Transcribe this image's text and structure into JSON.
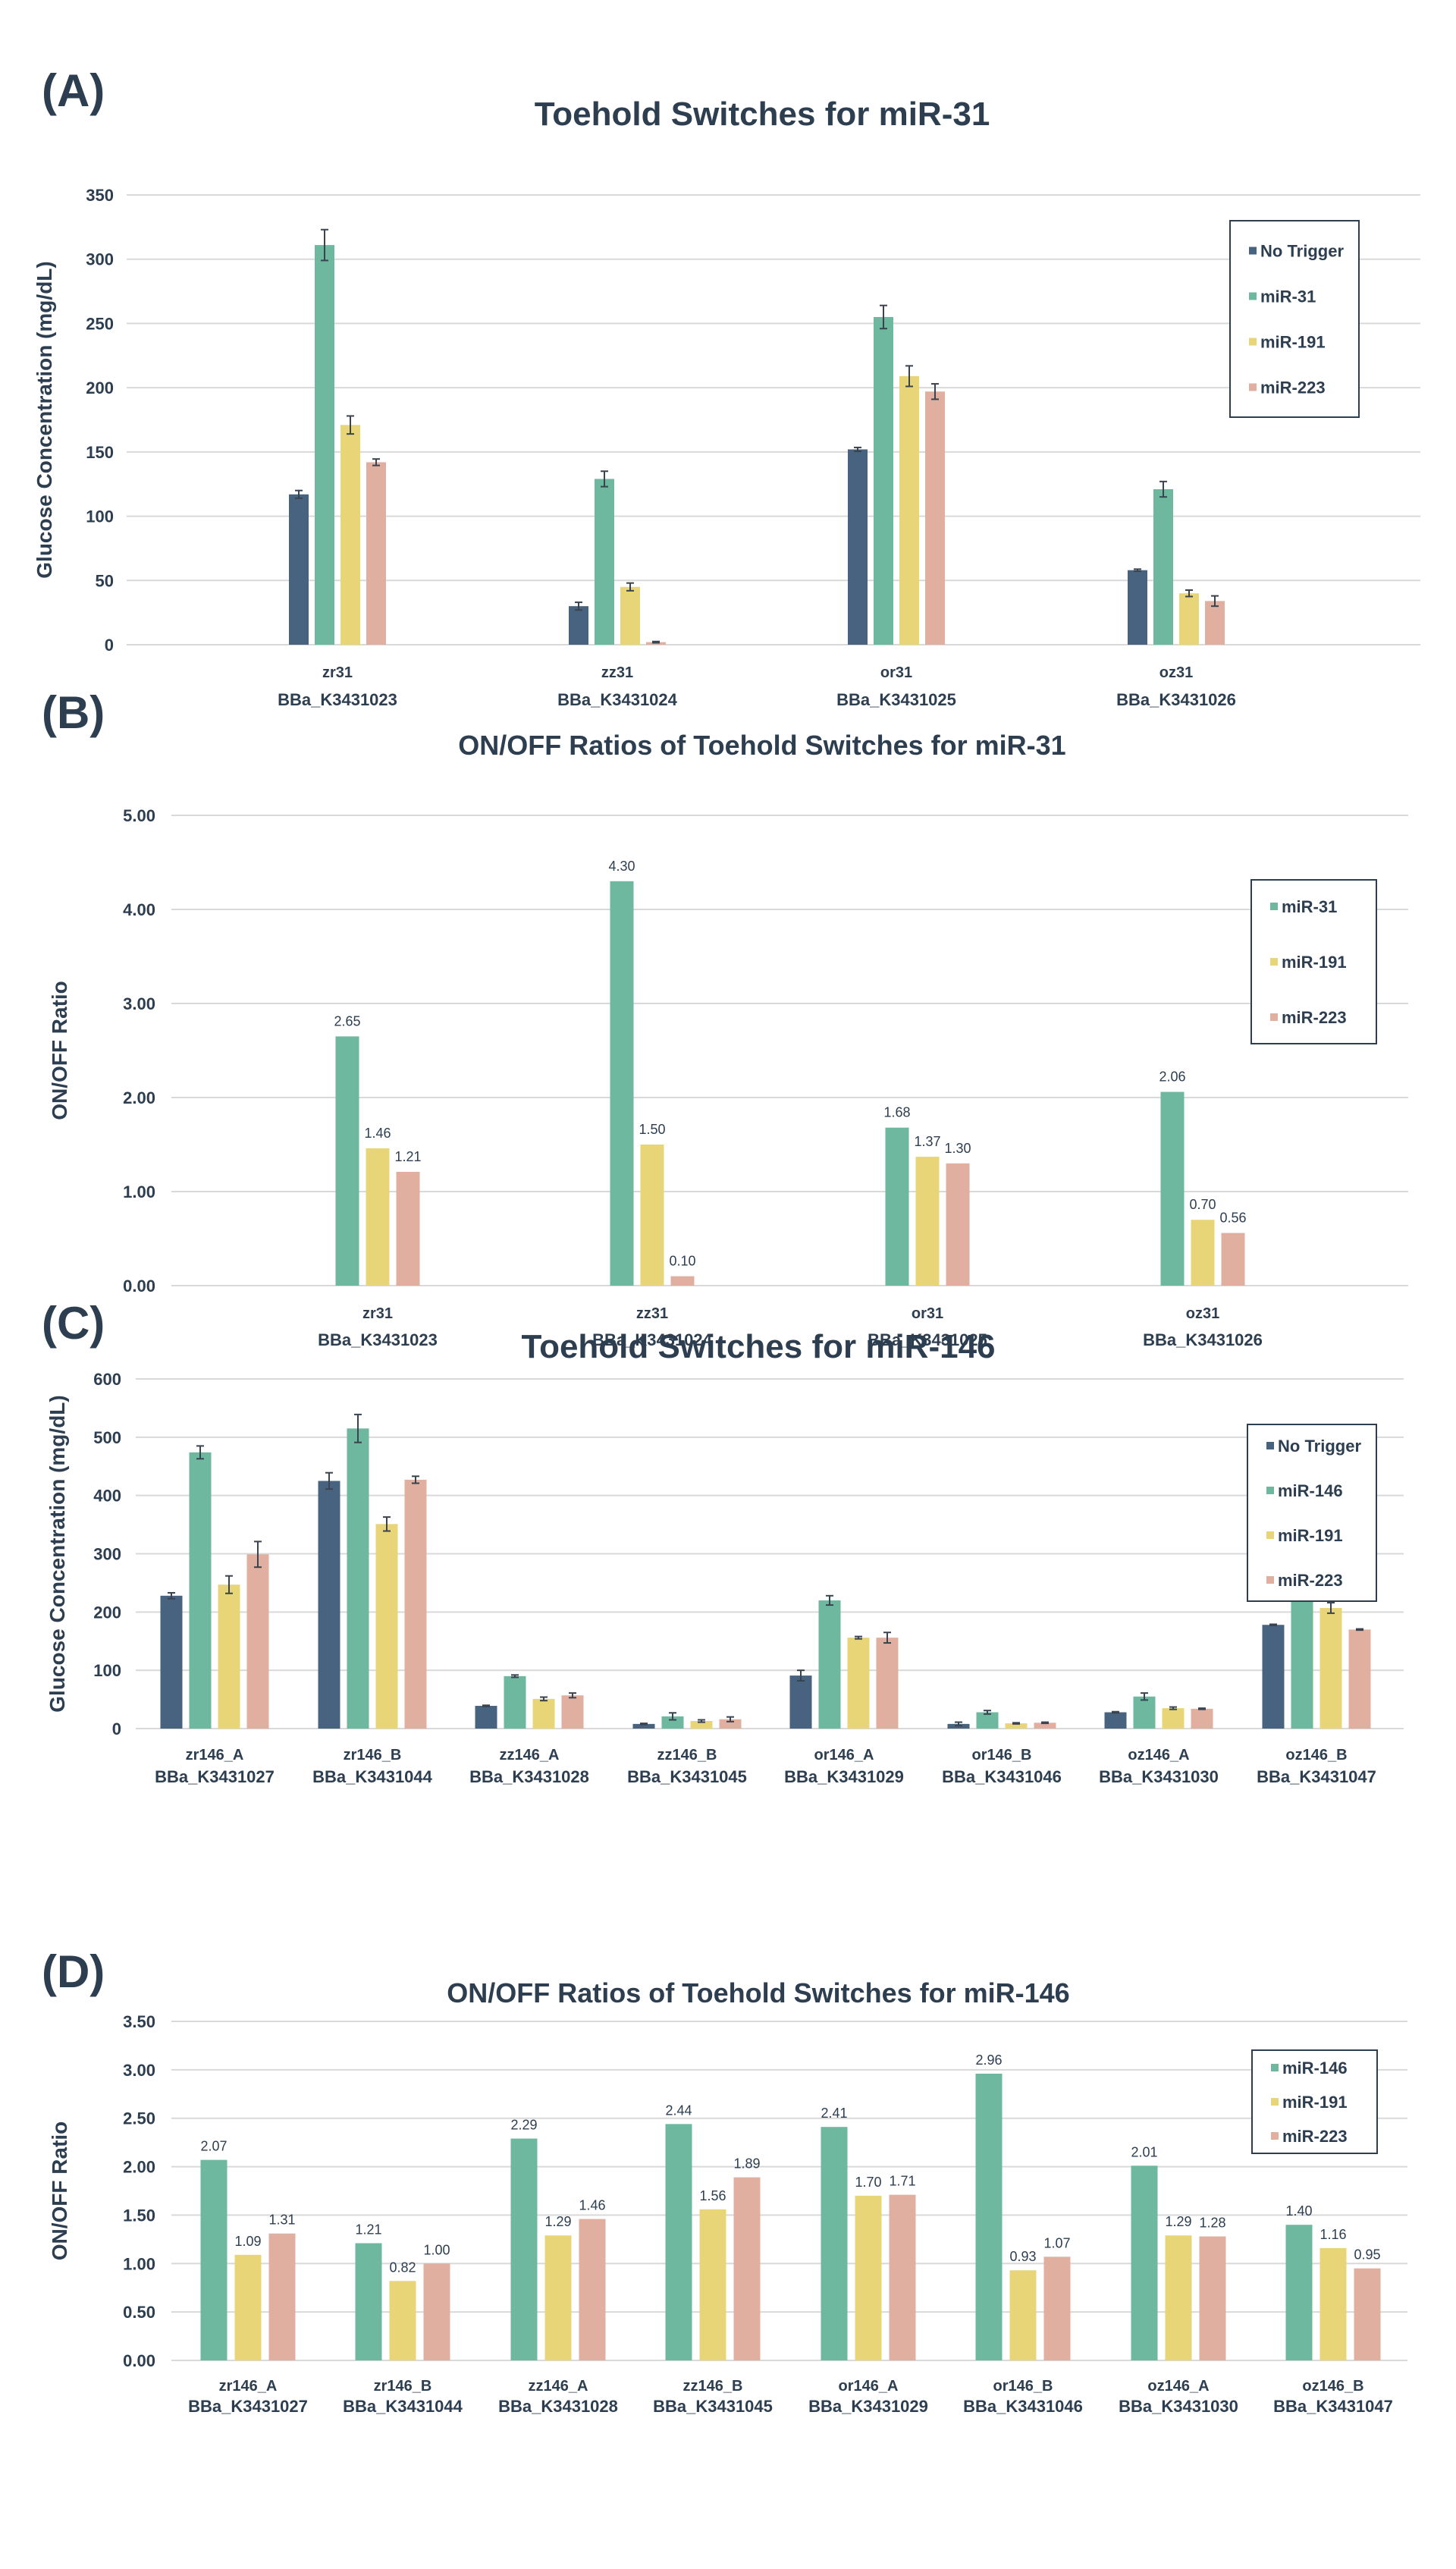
{
  "figure": {
    "panels": [
      "(A)",
      "(B)",
      "(C)",
      "(D)"
    ]
  },
  "colors": {
    "No Trigger": "#48637f",
    "miR-31": "#6db89f",
    "miR-146": "#6db89f",
    "miR-191": "#e8d577",
    "miR-223": "#e0af9f",
    "text": "#2c3e50",
    "grid": "#d9d9d9"
  },
  "chart_data": [
    {
      "id": "A",
      "type": "bar",
      "title": "Toehold Switches for miR-31",
      "xlabel": "",
      "ylabel": "Glucose Concentration (mg/dL)",
      "ylim": [
        0,
        350
      ],
      "yticks": [
        0,
        50,
        100,
        150,
        200,
        250,
        300,
        350
      ],
      "ytick_format": "int",
      "grid": true,
      "legend": "right",
      "categories": [
        "zr31",
        "zz31",
        "or31",
        "oz31"
      ],
      "category_ids": [
        "BBa_K3431023",
        "BBa_K3431024",
        "BBa_K3431025",
        "BBa_K3431026"
      ],
      "series": [
        {
          "name": "No Trigger",
          "values": [
            117,
            30,
            152,
            58
          ],
          "errors": [
            3,
            3,
            1.5,
            0.8
          ]
        },
        {
          "name": "miR-31",
          "values": [
            311,
            129,
            255,
            121
          ],
          "errors": [
            12,
            6,
            9,
            6
          ]
        },
        {
          "name": "miR-191",
          "values": [
            171,
            45,
            209,
            40
          ],
          "errors": [
            7,
            3,
            8,
            2.5
          ]
        },
        {
          "name": "miR-223",
          "values": [
            142,
            2,
            197,
            34
          ],
          "errors": [
            2.5,
            0.5,
            6,
            4
          ]
        }
      ]
    },
    {
      "id": "B",
      "type": "bar",
      "title": "ON/OFF Ratios of Toehold Switches for miR-31",
      "xlabel": "",
      "ylabel": "ON/OFF Ratio",
      "ylim": [
        0,
        5
      ],
      "yticks": [
        0,
        1,
        2,
        3,
        4,
        5
      ],
      "ytick_format": "2dp",
      "grid": true,
      "legend": "right",
      "categories": [
        "zr31",
        "zz31",
        "or31",
        "oz31"
      ],
      "category_ids": [
        "BBa_K3431023",
        "BBa_K3431024",
        "BBa_K3431025",
        "BBa_K3431026"
      ],
      "series": [
        {
          "name": "miR-31",
          "values": [
            2.65,
            4.3,
            1.68,
            2.06
          ]
        },
        {
          "name": "miR-191",
          "values": [
            1.46,
            1.5,
            1.37,
            0.7
          ]
        },
        {
          "name": "miR-223",
          "values": [
            1.21,
            0.1,
            1.3,
            0.56
          ]
        }
      ],
      "data_labels": true
    },
    {
      "id": "C",
      "type": "bar",
      "title": "Toehold Switches for miR-146",
      "xlabel": "",
      "ylabel": "Glucose Concentration (mg/dL)",
      "ylim": [
        0,
        600
      ],
      "yticks": [
        0,
        100,
        200,
        300,
        400,
        500,
        600
      ],
      "ytick_format": "int",
      "grid": true,
      "legend": "top-right",
      "categories": [
        "zr146_A",
        "zr146_B",
        "zz146_A",
        "zz146_B",
        "or146_A",
        "or146_B",
        "oz146_A",
        "oz146_B"
      ],
      "category_ids": [
        "BBa_K3431027",
        "BBa_K3431044",
        "BBa_K3431028",
        "BBa_K3431045",
        "BBa_K3431029",
        "BBa_K3431046",
        "BBa_K3431030",
        "BBa_K3431047"
      ],
      "series": [
        {
          "name": "No Trigger",
          "values": [
            228,
            425,
            39,
            8,
            91,
            8,
            28,
            178
          ],
          "errors": [
            5,
            14,
            1,
            1,
            9,
            3,
            1,
            1
          ]
        },
        {
          "name": "miR-146",
          "values": [
            474,
            515,
            90,
            21,
            220,
            28,
            55,
            250
          ],
          "errors": [
            11,
            24,
            2,
            6,
            8,
            3,
            6,
            15
          ]
        },
        {
          "name": "miR-191",
          "values": [
            247,
            351,
            51,
            13,
            156,
            9,
            35,
            207
          ],
          "errors": [
            15,
            12,
            3,
            2,
            2,
            1,
            2,
            9
          ]
        },
        {
          "name": "miR-223",
          "values": [
            299,
            427,
            57,
            16,
            156,
            10,
            34,
            170
          ],
          "errors": [
            22,
            6,
            4,
            4,
            9,
            1,
            1,
            1
          ]
        }
      ]
    },
    {
      "id": "D",
      "type": "bar",
      "title": "ON/OFF Ratios of Toehold Switches for miR-146",
      "xlabel": "",
      "ylabel": "ON/OFF Ratio",
      "ylim": [
        0,
        3.5
      ],
      "yticks": [
        0,
        0.5,
        1,
        1.5,
        2,
        2.5,
        3,
        3.5
      ],
      "ytick_format": "2dp",
      "grid": true,
      "legend": "top-right",
      "categories": [
        "zr146_A",
        "zr146_B",
        "zz146_A",
        "zz146_B",
        "or146_A",
        "or146_B",
        "oz146_A",
        "oz146_B"
      ],
      "category_ids": [
        "BBa_K3431027",
        "BBa_K3431044",
        "BBa_K3431028",
        "BBa_K3431045",
        "BBa_K3431029",
        "BBa_K3431046",
        "BBa_K3431030",
        "BBa_K3431047"
      ],
      "series": [
        {
          "name": "miR-146",
          "values": [
            2.07,
            1.21,
            2.29,
            2.44,
            2.41,
            2.96,
            2.01,
            1.4
          ]
        },
        {
          "name": "miR-191",
          "values": [
            1.09,
            0.82,
            1.29,
            1.56,
            1.7,
            0.93,
            1.29,
            1.16
          ]
        },
        {
          "name": "miR-223",
          "values": [
            1.31,
            1.0,
            1.46,
            1.89,
            1.71,
            1.07,
            1.28,
            0.95
          ]
        }
      ],
      "data_labels": true
    }
  ]
}
